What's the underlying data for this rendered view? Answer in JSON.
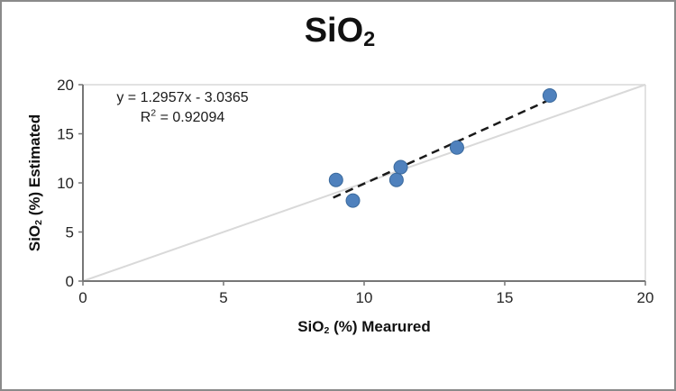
{
  "window": {
    "background": "#ffffff",
    "frame_border_color": "#8a8a8a"
  },
  "chart_data": {
    "type": "scatter",
    "title": {
      "base": "SiO",
      "sub": "2"
    },
    "annotation": {
      "equation": "y = 1.2957x - 3.0365",
      "r_squared": {
        "base": "R",
        "sup": "2",
        "rest": " = 0.92094"
      }
    },
    "x_axis": {
      "label": {
        "base": "SiO",
        "sub": "2",
        "rest": " (%) Mearured"
      },
      "min": 0,
      "max": 20,
      "ticks": [
        0,
        5,
        10,
        15,
        20
      ]
    },
    "y_axis": {
      "label": {
        "base": "SiO",
        "sub": "2",
        "rest": " (%) Estimated"
      },
      "min": 0,
      "max": 20,
      "ticks": [
        0,
        5,
        10,
        15,
        20
      ]
    },
    "points": [
      {
        "x": 9.0,
        "y": 10.3
      },
      {
        "x": 9.6,
        "y": 8.2
      },
      {
        "x": 11.15,
        "y": 10.3
      },
      {
        "x": 11.3,
        "y": 11.6
      },
      {
        "x": 13.3,
        "y": 13.6
      },
      {
        "x": 16.6,
        "y": 18.9
      }
    ],
    "trendline": {
      "slope": 1.2957,
      "intercept": -3.0365,
      "r2": 0.92094,
      "x_start": 8.9,
      "x_end": 16.8,
      "style": "dashed",
      "color": "#1a1a1a"
    },
    "identity_line": {
      "from": {
        "x": 0,
        "y": 0
      },
      "to": {
        "x": 20,
        "y": 20
      },
      "color": "#d9d9d9"
    },
    "marker": {
      "shape": "circle",
      "radius": 7.5,
      "fill": "#4f81bd",
      "stroke": "#3a699c"
    },
    "colors": {
      "axis_line": "#767676",
      "tick_label": "#262626",
      "plot_border": "#d9d9d9"
    },
    "layout_hints": {
      "grid": "off",
      "legend": "none"
    }
  }
}
